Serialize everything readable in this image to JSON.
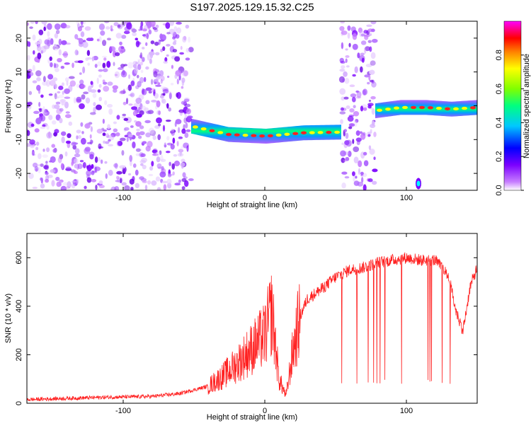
{
  "title": "S197.2025.129.15.32.C25",
  "chart_data": [
    {
      "type": "heatmap",
      "xlabel": "Height of straight line (km)",
      "ylabel": "Frequency (Hz)",
      "xlim": [
        -168,
        150
      ],
      "ylim": [
        -25,
        25
      ],
      "xticks": [
        -100,
        0,
        100
      ],
      "yticks": [
        -20,
        -10,
        0,
        10,
        20
      ],
      "colorbar": {
        "label": "Normalized spectral amplitude",
        "range": [
          0,
          1
        ],
        "ticks": [
          0.0,
          0.2,
          0.4,
          0.6,
          0.8
        ],
        "colors": [
          "#ffffff",
          "#c77dff",
          "#7b00ff",
          "#0000ff",
          "#00c8ff",
          "#00ff80",
          "#80ff00",
          "#ffff00",
          "#ff8000",
          "#ff0000",
          "#ff00ff"
        ]
      },
      "regions": [
        {
          "x": [
            -168,
            -52
          ],
          "pattern": "noise"
        },
        {
          "x": [
            -52,
            54
          ],
          "pattern": "band",
          "freq": [
            -6,
            -8.5,
            -9,
            -8,
            -7.8
          ]
        },
        {
          "x": [
            54,
            78
          ],
          "pattern": "noise"
        },
        {
          "x": [
            78,
            150
          ],
          "pattern": "band",
          "freq": [
            -1.5,
            -0.5,
            -0.5,
            -1,
            -0.5
          ]
        },
        {
          "x": [
            107,
            110
          ],
          "pattern": "spot",
          "freq": [
            -23
          ]
        }
      ]
    },
    {
      "type": "line",
      "xlabel": "Height of straight line (km)",
      "ylabel": "SNR (10 * v/v)",
      "xlim": [
        -168,
        150
      ],
      "ylim": [
        0,
        700
      ],
      "xticks": [
        -100,
        0,
        100
      ],
      "yticks": [
        0,
        200,
        400,
        600
      ],
      "color": "#ff2020",
      "x": [
        -168,
        -140,
        -110,
        -80,
        -60,
        -40,
        -30,
        -20,
        -10,
        0,
        5,
        10,
        15,
        20,
        25,
        30,
        40,
        50,
        60,
        70,
        80,
        90,
        100,
        110,
        120,
        125,
        130,
        135,
        140,
        145,
        150
      ],
      "y": [
        15,
        20,
        25,
        28,
        40,
        70,
        110,
        160,
        220,
        280,
        380,
        100,
        30,
        220,
        360,
        430,
        470,
        520,
        550,
        560,
        580,
        590,
        600,
        590,
        590,
        560,
        520,
        380,
        300,
        480,
        560
      ]
    }
  ]
}
